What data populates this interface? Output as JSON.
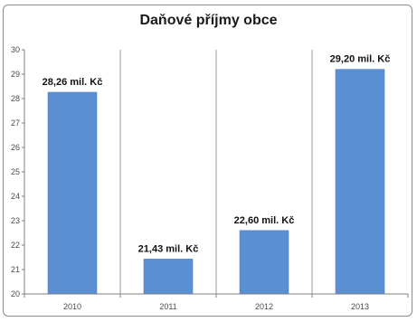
{
  "chart_data": {
    "type": "bar",
    "title": "Daňové příjmy obce",
    "xlabel": "",
    "ylabel": "",
    "categories": [
      "2010",
      "2011",
      "2012",
      "2013"
    ],
    "values": [
      28.26,
      21.43,
      22.6,
      29.2
    ],
    "data_labels": [
      "28,26 mil. Kč",
      "21,43 mil. Kč",
      "22,60 mil. Kč",
      "29,20 mil. Kč"
    ],
    "ylim": [
      20,
      30
    ],
    "yticks": [
      "20",
      "21",
      "22",
      "23",
      "24",
      "25",
      "26",
      "27",
      "28",
      "29",
      "30"
    ],
    "grid": "vertical category separators",
    "legend": "none",
    "colors": {
      "bar": "#5b8fd4",
      "bar_edge": "#4a7cc0",
      "axis": "#7f7f7f"
    }
  }
}
